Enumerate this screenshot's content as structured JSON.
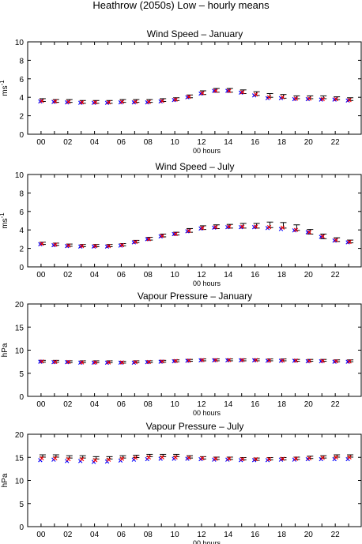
{
  "title": "Heathrow (2050s) Low – hourly means",
  "colors": {
    "low_bar": "#000000",
    "model_cross": "#0000ff",
    "obs_cross": "#ff0000",
    "axes": "#000000"
  },
  "chart_data": [
    {
      "type": "scatter",
      "title": "Wind Speed – January",
      "xlabel": "00 hours",
      "ylabel": "ms^-1",
      "xlim": [
        -1,
        24
      ],
      "ylim": [
        0,
        10
      ],
      "yticks": [
        0,
        2,
        4,
        6,
        8,
        10
      ],
      "xtick_labels": [
        "00",
        "02",
        "04",
        "06",
        "08",
        "10",
        "12",
        "14",
        "16",
        "18",
        "20",
        "22"
      ],
      "x": [
        0,
        1,
        2,
        3,
        4,
        5,
        6,
        7,
        8,
        9,
        10,
        11,
        12,
        13,
        14,
        15,
        16,
        17,
        18,
        19,
        20,
        21,
        22,
        23
      ],
      "series": [
        {
          "marker": "bar",
          "color": "#000000",
          "values": [
            3.7,
            3.6,
            3.6,
            3.5,
            3.5,
            3.5,
            3.6,
            3.6,
            3.6,
            3.7,
            3.8,
            4.1,
            4.5,
            4.75,
            4.75,
            4.6,
            4.4,
            4.2,
            4.1,
            4.0,
            4.0,
            4.0,
            3.9,
            3.8
          ],
          "err": [
            0.15,
            0.15,
            0.15,
            0.15,
            0.15,
            0.15,
            0.15,
            0.15,
            0.15,
            0.15,
            0.15,
            0.15,
            0.2,
            0.2,
            0.2,
            0.2,
            0.2,
            0.2,
            0.2,
            0.15,
            0.15,
            0.15,
            0.15,
            0.15
          ]
        },
        {
          "marker": "cross",
          "color": "#0000ff",
          "values": [
            3.55,
            3.5,
            3.45,
            3.4,
            3.4,
            3.4,
            3.45,
            3.45,
            3.45,
            3.55,
            3.7,
            4.0,
            4.4,
            4.7,
            4.7,
            4.5,
            4.2,
            3.9,
            3.9,
            3.8,
            3.8,
            3.75,
            3.75,
            3.65
          ]
        },
        {
          "marker": "cross",
          "color": "#ff0000",
          "values": [
            3.6,
            3.55,
            3.5,
            3.45,
            3.45,
            3.45,
            3.5,
            3.5,
            3.5,
            3.6,
            3.75,
            4.05,
            4.45,
            4.7,
            4.7,
            4.55,
            4.3,
            4.0,
            4.0,
            3.85,
            3.85,
            3.8,
            3.8,
            3.7
          ]
        }
      ]
    },
    {
      "type": "scatter",
      "title": "Wind Speed – July",
      "xlabel": "00 hours",
      "ylabel": "ms^-1",
      "xlim": [
        -1,
        24
      ],
      "ylim": [
        0,
        10
      ],
      "yticks": [
        0,
        2,
        4,
        6,
        8,
        10
      ],
      "xtick_labels": [
        "00",
        "02",
        "04",
        "06",
        "08",
        "10",
        "12",
        "14",
        "16",
        "18",
        "20",
        "22"
      ],
      "x": [
        0,
        1,
        2,
        3,
        4,
        5,
        6,
        7,
        8,
        9,
        10,
        11,
        12,
        13,
        14,
        15,
        16,
        17,
        18,
        19,
        20,
        21,
        22,
        23
      ],
      "series": [
        {
          "marker": "bar",
          "color": "#000000",
          "values": [
            2.55,
            2.45,
            2.35,
            2.3,
            2.3,
            2.3,
            2.4,
            2.75,
            3.05,
            3.4,
            3.6,
            3.95,
            4.25,
            4.35,
            4.4,
            4.45,
            4.45,
            4.55,
            4.5,
            4.25,
            3.8,
            3.3,
            2.95,
            2.75
          ],
          "err": [
            0.12,
            0.12,
            0.12,
            0.12,
            0.12,
            0.12,
            0.12,
            0.12,
            0.15,
            0.15,
            0.15,
            0.2,
            0.2,
            0.2,
            0.2,
            0.25,
            0.25,
            0.3,
            0.3,
            0.3,
            0.25,
            0.25,
            0.2,
            0.15
          ]
        },
        {
          "marker": "cross",
          "color": "#0000ff",
          "values": [
            2.45,
            2.35,
            2.25,
            2.2,
            2.2,
            2.2,
            2.3,
            2.65,
            3.0,
            3.3,
            3.55,
            3.85,
            4.15,
            4.25,
            4.3,
            4.3,
            4.3,
            4.2,
            4.1,
            3.95,
            3.75,
            3.25,
            2.85,
            2.65
          ]
        },
        {
          "marker": "cross",
          "color": "#ff0000",
          "values": [
            2.5,
            2.4,
            2.3,
            2.25,
            2.25,
            2.25,
            2.35,
            2.7,
            3.0,
            3.35,
            3.55,
            3.9,
            4.2,
            4.3,
            4.35,
            4.35,
            4.35,
            4.3,
            4.25,
            4.0,
            3.75,
            3.3,
            2.9,
            2.7
          ]
        }
      ]
    },
    {
      "type": "scatter",
      "title": "Vapour Pressure – January",
      "xlabel": "00 hours",
      "ylabel": "hPa",
      "xlim": [
        -1,
        24
      ],
      "ylim": [
        0,
        20
      ],
      "yticks": [
        0,
        5,
        10,
        15,
        20
      ],
      "xtick_labels": [
        "00",
        "02",
        "04",
        "06",
        "08",
        "10",
        "12",
        "14",
        "16",
        "18",
        "20",
        "22"
      ],
      "x": [
        0,
        1,
        2,
        3,
        4,
        5,
        6,
        7,
        8,
        9,
        10,
        11,
        12,
        13,
        14,
        15,
        16,
        17,
        18,
        19,
        20,
        21,
        22,
        23
      ],
      "series": [
        {
          "marker": "bar",
          "color": "#000000",
          "values": [
            7.6,
            7.6,
            7.5,
            7.5,
            7.5,
            7.5,
            7.4,
            7.5,
            7.5,
            7.6,
            7.7,
            7.8,
            7.9,
            7.9,
            7.9,
            7.9,
            7.9,
            7.9,
            7.9,
            7.8,
            7.8,
            7.8,
            7.7,
            7.7
          ],
          "err": [
            0.2,
            0.2,
            0.2,
            0.2,
            0.2,
            0.2,
            0.2,
            0.2,
            0.2,
            0.2,
            0.2,
            0.2,
            0.2,
            0.2,
            0.2,
            0.2,
            0.2,
            0.2,
            0.2,
            0.2,
            0.2,
            0.2,
            0.2,
            0.2
          ]
        },
        {
          "marker": "cross",
          "color": "#0000ff",
          "values": [
            7.5,
            7.4,
            7.4,
            7.3,
            7.3,
            7.3,
            7.3,
            7.3,
            7.4,
            7.5,
            7.6,
            7.7,
            7.8,
            7.8,
            7.8,
            7.8,
            7.8,
            7.7,
            7.7,
            7.7,
            7.6,
            7.6,
            7.5,
            7.5
          ]
        },
        {
          "marker": "cross",
          "color": "#ff0000",
          "values": [
            7.55,
            7.45,
            7.45,
            7.35,
            7.35,
            7.35,
            7.35,
            7.4,
            7.45,
            7.55,
            7.65,
            7.75,
            7.85,
            7.85,
            7.85,
            7.85,
            7.85,
            7.75,
            7.75,
            7.75,
            7.65,
            7.65,
            7.6,
            7.55
          ]
        }
      ]
    },
    {
      "type": "scatter",
      "title": "Vapour Pressure – July",
      "xlabel": "00 hours",
      "ylabel": "hPa",
      "xlim": [
        -1,
        24
      ],
      "ylim": [
        0,
        20
      ],
      "yticks": [
        0,
        5,
        10,
        15,
        20
      ],
      "xtick_labels": [
        "00",
        "02",
        "04",
        "06",
        "08",
        "10",
        "12",
        "14",
        "16",
        "18",
        "20",
        "22"
      ],
      "x": [
        0,
        1,
        2,
        3,
        4,
        5,
        6,
        7,
        8,
        9,
        10,
        11,
        12,
        13,
        14,
        15,
        16,
        17,
        18,
        19,
        20,
        21,
        22,
        23
      ],
      "series": [
        {
          "marker": "bar",
          "color": "#000000",
          "values": [
            15.3,
            15.3,
            15.1,
            15.1,
            14.9,
            14.9,
            15.1,
            15.2,
            15.4,
            15.4,
            15.4,
            15.1,
            14.9,
            14.8,
            14.8,
            14.7,
            14.6,
            14.7,
            14.7,
            14.8,
            15.0,
            15.1,
            15.3,
            15.3
          ],
          "err": [
            0.25,
            0.25,
            0.25,
            0.25,
            0.25,
            0.25,
            0.25,
            0.25,
            0.25,
            0.25,
            0.25,
            0.25,
            0.25,
            0.25,
            0.25,
            0.25,
            0.25,
            0.25,
            0.25,
            0.25,
            0.25,
            0.25,
            0.25,
            0.25
          ]
        },
        {
          "marker": "cross",
          "color": "#0000ff",
          "values": [
            14.4,
            14.5,
            14.2,
            14.2,
            14.0,
            14.1,
            14.3,
            14.5,
            14.6,
            14.7,
            14.7,
            14.7,
            14.6,
            14.5,
            14.5,
            14.4,
            14.4,
            14.4,
            14.5,
            14.5,
            14.6,
            14.6,
            14.6,
            14.6
          ]
        },
        {
          "marker": "cross",
          "color": "#ff0000",
          "values": [
            14.8,
            14.8,
            14.6,
            14.6,
            14.4,
            14.5,
            14.7,
            14.9,
            15.0,
            15.0,
            15.0,
            14.9,
            14.8,
            14.7,
            14.7,
            14.6,
            14.6,
            14.6,
            14.7,
            14.7,
            14.8,
            14.9,
            15.0,
            15.0
          ]
        }
      ]
    }
  ]
}
